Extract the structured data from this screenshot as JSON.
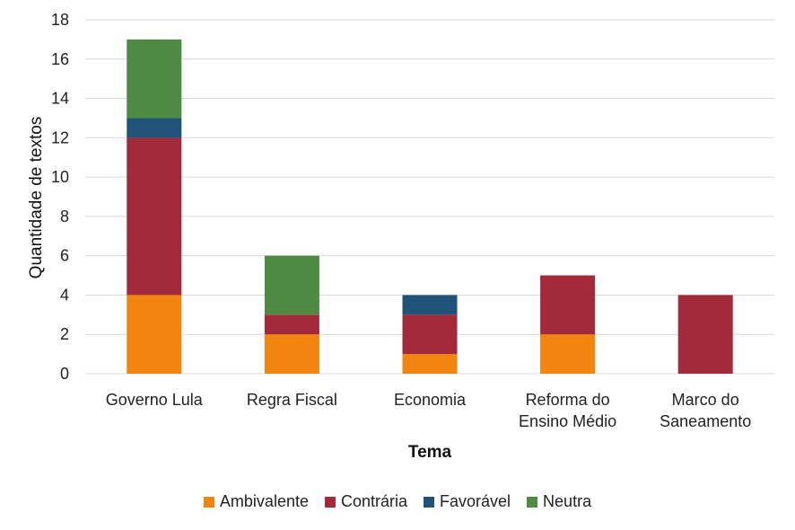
{
  "chart_data": {
    "type": "bar",
    "stacked": true,
    "xlabel": "Tema",
    "ylabel": "Quantidade de textos",
    "ylim": [
      0,
      18
    ],
    "yticks": [
      0,
      2,
      4,
      6,
      8,
      10,
      12,
      14,
      16,
      18
    ],
    "grid": true,
    "legend_position": "bottom",
    "categories": [
      [
        "Governo Lula"
      ],
      [
        "Regra Fiscal"
      ],
      [
        "Economia"
      ],
      [
        "Reforma do",
        "Ensino Médio"
      ],
      [
        "Marco do",
        "Saneamento"
      ]
    ],
    "series": [
      {
        "name": "Ambivalente",
        "color": "#f28410",
        "values": [
          4,
          2,
          1,
          2,
          0
        ]
      },
      {
        "name": "Contrária",
        "color": "#a32a3a",
        "values": [
          8,
          1,
          2,
          3,
          4
        ]
      },
      {
        "name": "Favorável",
        "color": "#1f5378",
        "values": [
          1,
          0,
          1,
          0,
          0
        ]
      },
      {
        "name": "Neutra",
        "color": "#4e8a44",
        "values": [
          4,
          3,
          0,
          0,
          0
        ]
      }
    ]
  }
}
